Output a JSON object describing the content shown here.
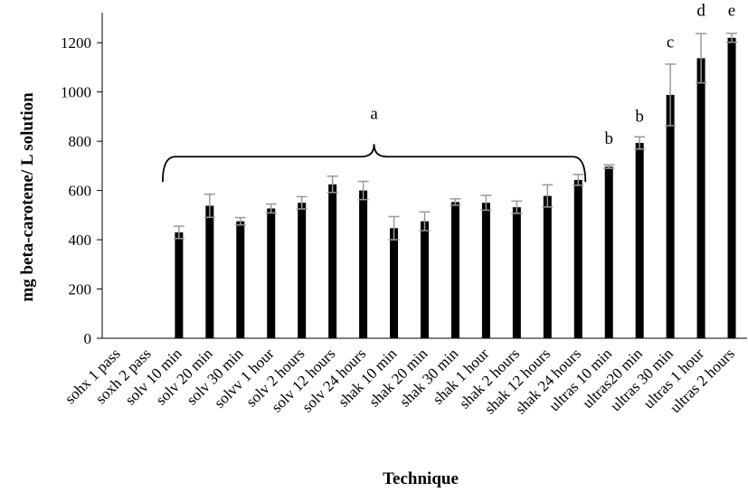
{
  "chart_data": {
    "type": "bar",
    "title": "",
    "xlabel": "Technique",
    "ylabel": "mg beta-carotene/ L solution",
    "ylim": [
      0,
      1300
    ],
    "yticks": [
      0,
      200,
      400,
      600,
      800,
      1000,
      1200
    ],
    "grid": false,
    "legend": "none",
    "categories": [
      "sohx 1 pass",
      "soxh 2 pass",
      "solv 10 min",
      "solv 20 min",
      "solv 30 min",
      "solvv 1 hour",
      "solv 2 hours",
      "solv 12 hours",
      "solv 24 hours",
      "shak 10 min",
      "shak 20 min",
      "shak 30 min",
      "shak 1 hour",
      "shak 2 hours",
      "shak 12 hours",
      "shak 24 hours",
      "ultras 10 min",
      "ultras20 min",
      "ultras 30 min",
      "ultras 1 hour",
      "ultras 2 hours"
    ],
    "values": [
      0,
      0,
      430,
      538,
      475,
      527,
      550,
      625,
      600,
      447,
      475,
      553,
      550,
      532,
      578,
      643,
      697,
      793,
      988,
      1137,
      1220
    ],
    "errors": [
      0,
      0,
      25,
      47,
      15,
      18,
      25,
      33,
      37,
      47,
      38,
      13,
      30,
      25,
      45,
      22,
      7,
      25,
      125,
      100,
      18
    ],
    "bar_color": "#000000",
    "error_bar_color": "#999999",
    "annotations": [
      {
        "text": "a",
        "spans": [
          "solv 10 min",
          "shak 24 hours"
        ],
        "bracket": true,
        "y": 840
      },
      {
        "text": "b",
        "category": "ultras 10 min",
        "y": 790
      },
      {
        "text": "b",
        "category": "ultras20 min",
        "y": 880
      },
      {
        "text": "c",
        "category": "ultras 30 min",
        "y": 1180
      },
      {
        "text": "d",
        "category": "ultras 1 hour",
        "y": 1310
      },
      {
        "text": "e",
        "category": "ultras 2 hours",
        "y": 1310
      }
    ]
  }
}
